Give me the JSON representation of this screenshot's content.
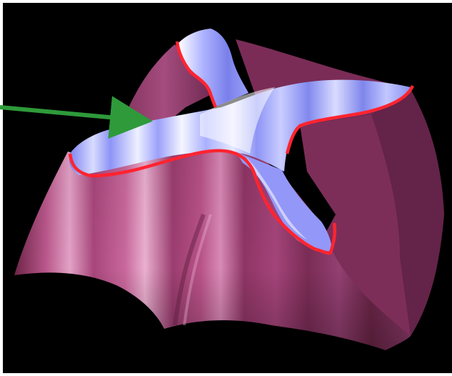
{
  "scene": {
    "background_color": "#000000",
    "frame_color": "#ffffff",
    "surface_color": "#9a3f6e",
    "surface_highlight": "#e6a0c8",
    "ridge_color": "#8c92ff",
    "ridge_highlight": "#e9ecff",
    "contour_color": "#ff2430",
    "arrow_color": "#2e9a3a",
    "arrow_icon": "arrow-right-icon"
  }
}
